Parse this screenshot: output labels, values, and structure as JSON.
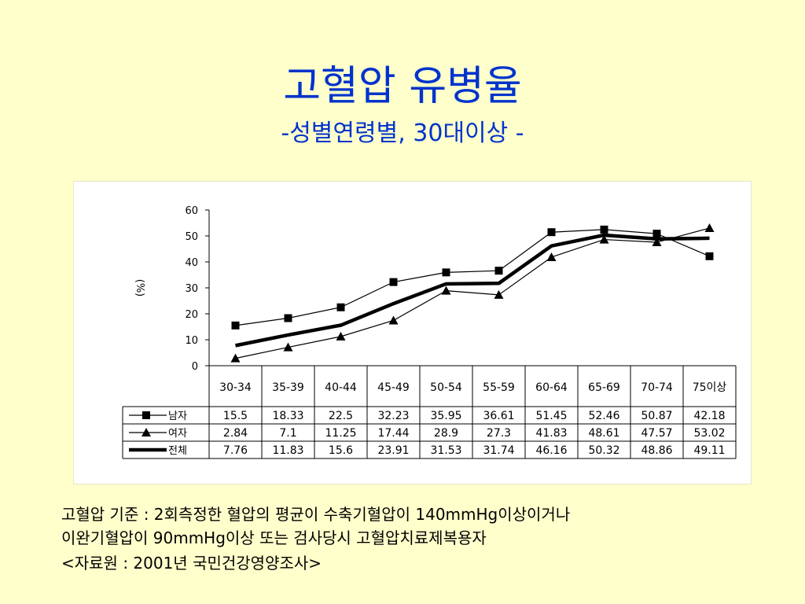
{
  "slide": {
    "title": "고혈압 유병율",
    "subtitle": "-성별연령별, 30대이상 -",
    "notes": [
      "고혈압 기준 : 2회측정한 혈압의 평균이 수축기혈압이 140mmHg이상이거나",
      "이완기혈압이 90mmHg이상 또는 검사당시 고혈압치료제복용자",
      "<자료원 : 2001년 국민건강영양조사>"
    ]
  },
  "chart_data": {
    "type": "line",
    "title": "",
    "xlabel": "",
    "ylabel": "(%)",
    "ylim": [
      0,
      60
    ],
    "yticks": [
      0,
      10,
      20,
      30,
      40,
      50,
      60
    ],
    "categories": [
      "30-34",
      "35-39",
      "40-44",
      "45-49",
      "50-54",
      "55-59",
      "60-64",
      "65-69",
      "70-74",
      "75이상"
    ],
    "series": [
      {
        "name": "남자",
        "marker": "square",
        "values": [
          15.5,
          18.33,
          22.5,
          32.23,
          35.95,
          36.61,
          51.45,
          52.46,
          50.87,
          42.18
        ]
      },
      {
        "name": "여자",
        "marker": "triangle",
        "values": [
          2.84,
          7.1,
          11.25,
          17.44,
          28.9,
          27.3,
          41.83,
          48.61,
          47.57,
          53.02
        ]
      },
      {
        "name": "전체",
        "marker": "none",
        "values": [
          7.76,
          11.83,
          15.6,
          23.91,
          31.53,
          31.74,
          46.16,
          50.32,
          48.86,
          49.11
        ]
      }
    ],
    "value_format": [
      "15.5",
      "18.33",
      "22.5",
      "32.23",
      "35.95",
      "36.61",
      "51.45",
      "52.46",
      "50.87",
      "42.18"
    ],
    "table": true,
    "grid": false
  }
}
